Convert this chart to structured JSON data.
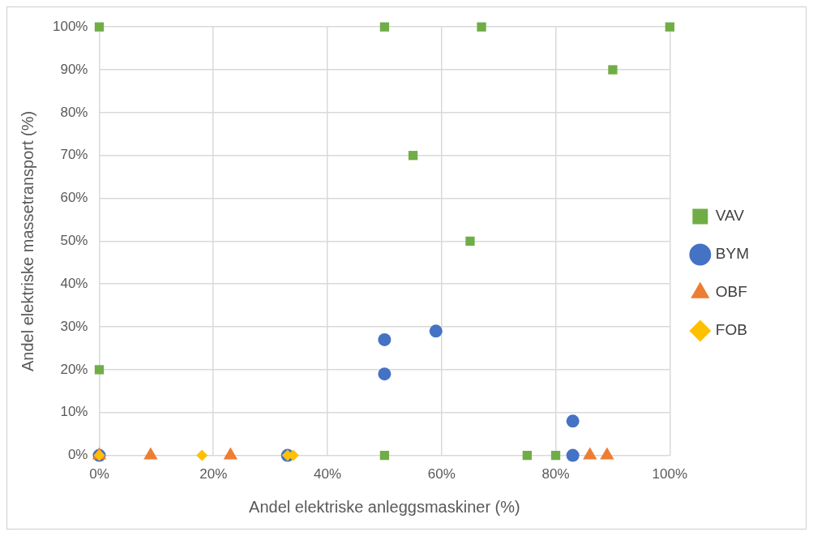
{
  "chart_data": {
    "type": "scatter",
    "xlabel": "Andel elektriske anleggsmaskiner (%)",
    "ylabel": "Andel elektriske massetransport (%)",
    "xlim": [
      0,
      100
    ],
    "ylim": [
      0,
      100
    ],
    "xticks": [
      {
        "value": 0,
        "label": "0%"
      },
      {
        "value": 20,
        "label": "20%"
      },
      {
        "value": 40,
        "label": "40%"
      },
      {
        "value": 60,
        "label": "60%"
      },
      {
        "value": 80,
        "label": "80%"
      },
      {
        "value": 100,
        "label": "100%"
      }
    ],
    "yticks": [
      {
        "value": 0,
        "label": "0%"
      },
      {
        "value": 10,
        "label": "10%"
      },
      {
        "value": 20,
        "label": "20%"
      },
      {
        "value": 30,
        "label": "30%"
      },
      {
        "value": 40,
        "label": "40%"
      },
      {
        "value": 50,
        "label": "50%"
      },
      {
        "value": 60,
        "label": "60%"
      },
      {
        "value": 70,
        "label": "70%"
      },
      {
        "value": 80,
        "label": "80%"
      },
      {
        "value": 90,
        "label": "90%"
      },
      {
        "value": 100,
        "label": "100%"
      }
    ],
    "grid": true,
    "legend": "right",
    "series": [
      {
        "name": "VAV",
        "color": "#70ad47",
        "marker": "square",
        "x": [
          0,
          0,
          50,
          67,
          100,
          90,
          55,
          65,
          50,
          75,
          80
        ],
        "values": [
          100,
          20,
          100,
          100,
          100,
          90,
          70,
          50,
          0,
          0,
          0
        ]
      },
      {
        "name": "BYM",
        "color": "#4472c4",
        "marker": "circle",
        "x": [
          0,
          33,
          50,
          50,
          59,
          83,
          83
        ],
        "values": [
          0,
          0,
          27,
          19,
          29,
          8,
          0
        ]
      },
      {
        "name": "OBF",
        "color": "#ed7d31",
        "marker": "triangle",
        "x": [
          0,
          9,
          23,
          86,
          89
        ],
        "values": [
          0,
          0,
          0,
          0,
          0
        ]
      },
      {
        "name": "FOB",
        "color": "#ffc000",
        "marker": "diamond",
        "x": [
          0,
          18,
          33,
          34
        ],
        "values": [
          0,
          0,
          0,
          0
        ]
      }
    ]
  }
}
